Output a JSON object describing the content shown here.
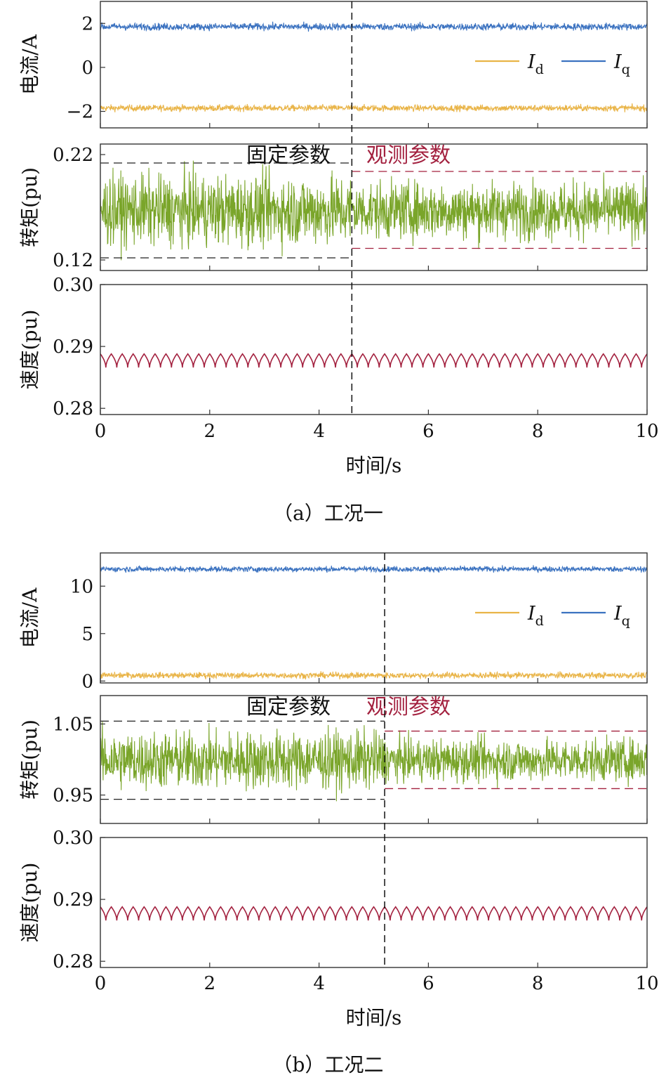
{
  "colors": {
    "id": "#E9B447",
    "iq": "#3B72C0",
    "torque": "#7AA52A",
    "speed": "#A3213F",
    "observed": "#A3213F",
    "axis": "#333333"
  },
  "legend": {
    "d_symbol": "I",
    "d_sub": "d",
    "q_symbol": "I",
    "q_sub": "q"
  },
  "chart_data": [
    {
      "type": "line",
      "caption": "（a）工况一",
      "xlabel": "时间/s",
      "xlim": [
        0,
        10
      ],
      "xticks": [
        "0",
        "2",
        "4",
        "6",
        "8",
        "10"
      ],
      "switch_time": 4.6,
      "panels": {
        "current": {
          "ylabel": "电流/A",
          "ylim": [
            -2.75,
            3.0
          ],
          "yticks": [
            "2",
            "0",
            "−2"
          ],
          "ytick_values": [
            2,
            0,
            -2
          ],
          "series": [
            {
              "name": "I_d",
              "mean": -1.85,
              "noise_half_range": 0.25
            },
            {
              "name": "I_q",
              "mean": 1.85,
              "noise_half_range": 0.28
            }
          ]
        },
        "torque": {
          "ylabel": "转矩(pu)",
          "ylim": [
            0.11,
            0.23
          ],
          "yticks": [
            "0.22",
            "0.12"
          ],
          "ytick_values": [
            0.22,
            0.12
          ],
          "fixed_label": "固定参数",
          "observed_label": "观测参数",
          "fixed_band": [
            0.122,
            0.212
          ],
          "observed_band": [
            0.131,
            0.204
          ],
          "series": [
            {
              "mean": 0.167
            }
          ]
        },
        "speed": {
          "ylabel": "速度(pu)",
          "ylim": [
            0.279,
            0.3
          ],
          "yticks": [
            "0.30",
            "0.29",
            "0.28"
          ],
          "ytick_values": [
            0.3,
            0.29,
            0.28
          ],
          "series": [
            {
              "mean": 0.2877,
              "amplitude": 0.0011,
              "cycles": 50
            }
          ]
        }
      }
    },
    {
      "type": "line",
      "caption": "（b）工况二",
      "xlabel": "时间/s",
      "xlim": [
        0,
        10
      ],
      "xticks": [
        "0",
        "2",
        "4",
        "6",
        "8",
        "10"
      ],
      "switch_time": 5.2,
      "panels": {
        "current": {
          "ylabel": "电流/A",
          "ylim": [
            -0.2,
            13.5
          ],
          "yticks": [
            "10",
            "5",
            "0"
          ],
          "ytick_values": [
            10,
            5,
            0
          ],
          "series": [
            {
              "name": "I_d",
              "mean": 0.6,
              "noise_half_range": 0.55
            },
            {
              "name": "I_q",
              "mean": 11.8,
              "noise_half_range": 0.5
            }
          ]
        },
        "torque": {
          "ylabel": "转矩(pu)",
          "ylim": [
            0.91,
            1.09
          ],
          "yticks": [
            "1.05",
            "0.95"
          ],
          "ytick_values": [
            1.05,
            0.95
          ],
          "fixed_label": "固定参数",
          "observed_label": "观测参数",
          "fixed_band": [
            0.944,
            1.054
          ],
          "observed_band": [
            0.959,
            1.04
          ],
          "series": [
            {
              "mean": 0.999
            }
          ]
        },
        "speed": {
          "ylabel": "速度(pu)",
          "ylim": [
            0.279,
            0.3
          ],
          "yticks": [
            "0.30",
            "0.29",
            "0.28"
          ],
          "ytick_values": [
            0.3,
            0.29,
            0.28
          ],
          "series": [
            {
              "mean": 0.2877,
              "amplitude": 0.0011,
              "cycles": 50
            }
          ]
        }
      }
    }
  ]
}
